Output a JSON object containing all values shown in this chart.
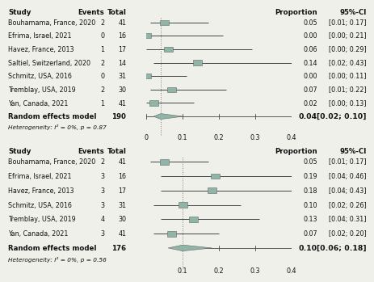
{
  "panel1": {
    "studies": [
      {
        "name": "Bouhamama, France, 2020",
        "events": 2,
        "total": 41,
        "prop": 0.05,
        "ci_lo": 0.01,
        "ci_hi": 0.17
      },
      {
        "name": "Efrima, Israel, 2021",
        "events": 0,
        "total": 16,
        "prop": 0.0,
        "ci_lo": 0.0,
        "ci_hi": 0.21
      },
      {
        "name": "Havez, France, 2013",
        "events": 1,
        "total": 17,
        "prop": 0.06,
        "ci_lo": 0.0,
        "ci_hi": 0.29
      },
      {
        "name": "Saltiel, Switzerland, 2020",
        "events": 2,
        "total": 14,
        "prop": 0.14,
        "ci_lo": 0.02,
        "ci_hi": 0.43
      },
      {
        "name": "Schmitz, USA, 2016",
        "events": 0,
        "total": 31,
        "prop": 0.0,
        "ci_lo": 0.0,
        "ci_hi": 0.11
      },
      {
        "name": "Tremblay, USA, 2019",
        "events": 2,
        "total": 30,
        "prop": 0.07,
        "ci_lo": 0.01,
        "ci_hi": 0.22
      },
      {
        "name": "Yan, Canada, 2021",
        "events": 1,
        "total": 41,
        "prop": 0.02,
        "ci_lo": 0.0,
        "ci_hi": 0.13
      }
    ],
    "pooled": {
      "total": 190,
      "prop": 0.04,
      "ci_lo": 0.02,
      "ci_hi": 0.1
    },
    "het_text": "Heterogeneity: I² = 0%, p = 0.87",
    "xlim": [
      0.0,
      0.4
    ],
    "xticks": [
      0.0,
      0.1,
      0.2,
      0.3,
      0.4
    ],
    "xtick_labels": [
      "0",
      "0.1",
      "0.2",
      "0.3",
      "0.4"
    ],
    "vline": 0.04
  },
  "panel2": {
    "studies": [
      {
        "name": "Bouhamama, France, 2020",
        "events": 2,
        "total": 41,
        "prop": 0.05,
        "ci_lo": 0.01,
        "ci_hi": 0.17
      },
      {
        "name": "Efrima, Israel, 2021",
        "events": 3,
        "total": 16,
        "prop": 0.19,
        "ci_lo": 0.04,
        "ci_hi": 0.46
      },
      {
        "name": "Havez, France, 2013",
        "events": 3,
        "total": 17,
        "prop": 0.18,
        "ci_lo": 0.04,
        "ci_hi": 0.43
      },
      {
        "name": "Schmitz, USA, 2016",
        "events": 3,
        "total": 31,
        "prop": 0.1,
        "ci_lo": 0.02,
        "ci_hi": 0.26
      },
      {
        "name": "Tremblay, USA, 2019",
        "events": 4,
        "total": 30,
        "prop": 0.13,
        "ci_lo": 0.04,
        "ci_hi": 0.31
      },
      {
        "name": "Yan, Canada, 2021",
        "events": 3,
        "total": 41,
        "prop": 0.07,
        "ci_lo": 0.02,
        "ci_hi": 0.2
      }
    ],
    "pooled": {
      "total": 176,
      "prop": 0.1,
      "ci_lo": 0.06,
      "ci_hi": 0.18
    },
    "het_text": "Heterogeneity: I² = 0%, p = 0.56",
    "xlim": [
      0.0,
      0.4
    ],
    "xticks": [
      0.1,
      0.2,
      0.3,
      0.4
    ],
    "xtick_labels": [
      "0.1",
      "0.2",
      "0.3",
      "0.4"
    ],
    "vline": 0.1
  },
  "square_color": "#8fb4a8",
  "line_color": "#444444",
  "text_color": "#111111",
  "bg_color": "#f0f0eb",
  "fs": 5.8,
  "fs_bold": 6.2
}
